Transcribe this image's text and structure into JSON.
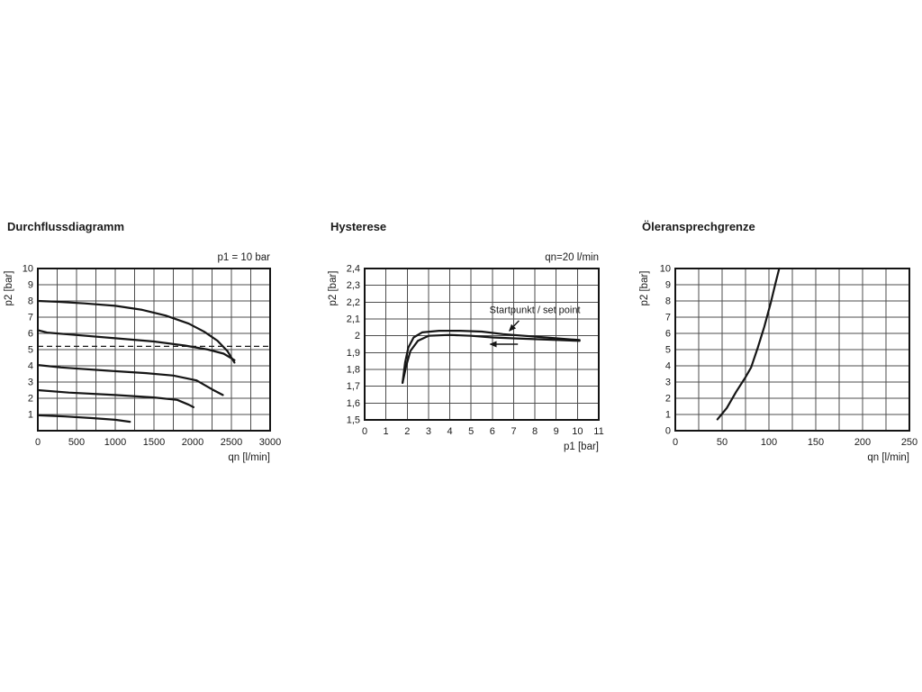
{
  "page": {
    "background": "#ffffff",
    "text_color": "#1a1a1a"
  },
  "chart_data": [
    {
      "type": "line",
      "title": "Durchflussdiagramm",
      "annotation": "p1 = 10 bar",
      "xlabel": "qn [l/min]",
      "ylabel": "p2 [bar]",
      "xlim": [
        0,
        3000
      ],
      "ylim": [
        0,
        10
      ],
      "grid": {
        "x_step": 250,
        "y_step": 1
      },
      "legend": "none",
      "xticks": [
        0,
        500,
        1000,
        1500,
        2000,
        2500,
        3000
      ],
      "xtick_labels": [
        "0",
        "500",
        "1000",
        "1500",
        "2000",
        "2500",
        "3000"
      ],
      "yticks": [
        1,
        2,
        3,
        4,
        5,
        6,
        7,
        8,
        9,
        10
      ],
      "ytick_labels": [
        "1",
        "2",
        "3",
        "4",
        "5",
        "6",
        "7",
        "8",
        "9",
        "10"
      ],
      "series": [
        {
          "name": "curve-p2-8bar",
          "points": [
            [
              0,
              8.0
            ],
            [
              250,
              7.95
            ],
            [
              600,
              7.85
            ],
            [
              1000,
              7.7
            ],
            [
              1350,
              7.45
            ],
            [
              1650,
              7.1
            ],
            [
              1950,
              6.6
            ],
            [
              2150,
              6.1
            ],
            [
              2320,
              5.55
            ],
            [
              2450,
              4.9
            ],
            [
              2540,
              4.2
            ]
          ]
        },
        {
          "name": "curve-p2-6bar",
          "points": [
            [
              0,
              6.2
            ],
            [
              120,
              6.05
            ],
            [
              500,
              5.9
            ],
            [
              1000,
              5.7
            ],
            [
              1500,
              5.5
            ],
            [
              1900,
              5.25
            ],
            [
              2200,
              5.0
            ],
            [
              2400,
              4.75
            ],
            [
              2540,
              4.35
            ]
          ]
        },
        {
          "name": "setpoint-dashed-line",
          "dashed": true,
          "points": [
            [
              0,
              5.2
            ],
            [
              3000,
              5.2
            ]
          ]
        },
        {
          "name": "curve-p2-4bar",
          "points": [
            [
              0,
              4.05
            ],
            [
              300,
              3.9
            ],
            [
              900,
              3.7
            ],
            [
              1400,
              3.55
            ],
            [
              1750,
              3.4
            ],
            [
              2050,
              3.1
            ],
            [
              2250,
              2.55
            ],
            [
              2390,
              2.2
            ]
          ]
        },
        {
          "name": "curve-p2-2_5bar",
          "points": [
            [
              0,
              2.5
            ],
            [
              400,
              2.35
            ],
            [
              1000,
              2.2
            ],
            [
              1500,
              2.05
            ],
            [
              1800,
              1.9
            ],
            [
              1950,
              1.6
            ],
            [
              2010,
              1.45
            ]
          ]
        },
        {
          "name": "curve-p2-1bar",
          "points": [
            [
              0,
              0.95
            ],
            [
              350,
              0.88
            ],
            [
              700,
              0.78
            ],
            [
              1000,
              0.67
            ],
            [
              1190,
              0.55
            ]
          ]
        }
      ]
    },
    {
      "type": "line",
      "title": "Hysterese",
      "annotation": "qn=20 l/min",
      "xlabel": "p1 [bar]",
      "ylabel": "p2 [bar]",
      "xlim": [
        0,
        11
      ],
      "ylim": [
        1.5,
        2.4
      ],
      "grid": {
        "x_step": 1,
        "y_step": 0.1
      },
      "legend": "none",
      "xticks": [
        0,
        1,
        2,
        3,
        4,
        5,
        6,
        7,
        8,
        9,
        10,
        11
      ],
      "xtick_labels": [
        "0",
        "1",
        "2",
        "3",
        "4",
        "5",
        "6",
        "7",
        "8",
        "9",
        "10",
        "11"
      ],
      "yticks": [
        1.5,
        1.6,
        1.7,
        1.8,
        1.9,
        2.0,
        2.1,
        2.2,
        2.3,
        2.4
      ],
      "ytick_labels": [
        "1,5",
        "1,6",
        "1,7",
        "1,8",
        "1,9",
        "2",
        "2,1",
        "2,2",
        "2,3",
        "2,4"
      ],
      "pointer": {
        "label": "Startpunkt / set point",
        "label_pos": [
          8.0,
          2.135
        ],
        "arrows": [
          {
            "from": [
              7.25,
              2.09
            ],
            "to": [
              6.8,
              2.03
            ]
          },
          {
            "from": [
              7.2,
              1.95
            ],
            "to": [
              5.9,
              1.95
            ]
          }
        ]
      },
      "series": [
        {
          "name": "hysteresis-upper-branch",
          "points": [
            [
              1.78,
              1.72
            ],
            [
              1.9,
              1.84
            ],
            [
              2.05,
              1.93
            ],
            [
              2.3,
              1.99
            ],
            [
              2.7,
              2.02
            ],
            [
              3.5,
              2.03
            ],
            [
              4.5,
              2.03
            ],
            [
              5.5,
              2.025
            ],
            [
              6.5,
              2.01
            ],
            [
              7.5,
              2.0
            ],
            [
              8.5,
              1.99
            ],
            [
              9.5,
              1.98
            ],
            [
              10.1,
              1.975
            ]
          ]
        },
        {
          "name": "hysteresis-lower-branch",
          "points": [
            [
              1.78,
              1.72
            ],
            [
              1.95,
              1.82
            ],
            [
              2.15,
              1.91
            ],
            [
              2.5,
              1.97
            ],
            [
              3.0,
              2.0
            ],
            [
              4.0,
              2.005
            ],
            [
              5.0,
              2.0
            ],
            [
              6.0,
              1.99
            ],
            [
              7.0,
              1.985
            ],
            [
              8.0,
              1.98
            ],
            [
              9.0,
              1.975
            ],
            [
              10.1,
              1.97
            ]
          ]
        }
      ]
    },
    {
      "type": "line",
      "title": "Öleransprechgrenze",
      "xlabel": "qn [l/min]",
      "ylabel": "p2 [bar]",
      "xlim": [
        0,
        250
      ],
      "ylim": [
        0,
        10
      ],
      "grid": {
        "x_step": 25,
        "y_step": 1
      },
      "legend": "none",
      "xticks": [
        0,
        50,
        100,
        150,
        200,
        250
      ],
      "xtick_labels": [
        "0",
        "50",
        "100",
        "150",
        "200",
        "250"
      ],
      "yticks": [
        0,
        1,
        2,
        3,
        4,
        5,
        6,
        7,
        8,
        9,
        10
      ],
      "ytick_labels": [
        "0",
        "1",
        "2",
        "3",
        "4",
        "5",
        "6",
        "7",
        "8",
        "9",
        "10"
      ],
      "series": [
        {
          "name": "oil-response-curve",
          "points": [
            [
              45,
              0.7
            ],
            [
              55,
              1.4
            ],
            [
              65,
              2.4
            ],
            [
              75,
              3.3
            ],
            [
              81,
              3.9
            ],
            [
              88,
              5.1
            ],
            [
              95,
              6.4
            ],
            [
              102,
              7.9
            ],
            [
              107,
              9.1
            ],
            [
              111,
              10.0
            ]
          ]
        }
      ]
    }
  ]
}
